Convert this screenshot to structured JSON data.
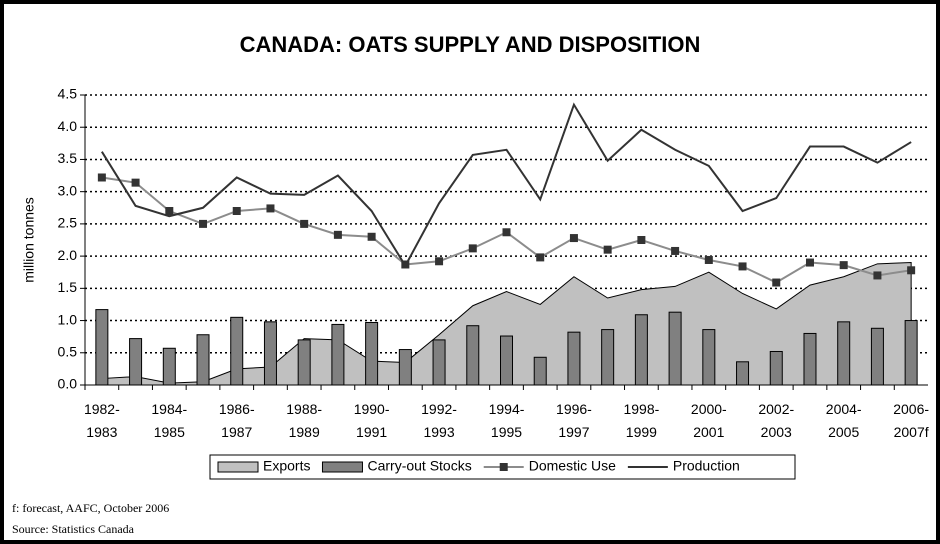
{
  "chart_data": {
    "type": "combo",
    "title": "CANADA: OATS SUPPLY AND DISPOSITION",
    "y_label": "million tonnes",
    "categories": [
      "1982-\n1983",
      null,
      "1984-\n1985",
      null,
      "1986-\n1987",
      null,
      "1988-\n1989",
      null,
      "1990-\n1991",
      null,
      "1992-\n1993",
      null,
      "1994-\n1995",
      null,
      "1996-\n1997",
      null,
      "1998-\n1999",
      null,
      "2000-\n2001",
      null,
      "2002-\n2003",
      null,
      "2004-\n2005",
      null,
      "2006-\n2007f"
    ],
    "series": [
      {
        "name": "Exports",
        "type": "area",
        "color": "#c0c0c0",
        "values": [
          0.1,
          0.13,
          0.03,
          0.05,
          0.25,
          0.28,
          0.72,
          0.7,
          0.37,
          0.35,
          0.78,
          1.23,
          1.45,
          1.25,
          1.68,
          1.35,
          1.48,
          1.53,
          1.75,
          1.42,
          1.18,
          1.55,
          1.68,
          1.88,
          1.9
        ]
      },
      {
        "name": "Carry-out Stocks",
        "type": "bar",
        "color": "#808080",
        "values": [
          1.17,
          0.72,
          0.57,
          0.78,
          1.05,
          0.98,
          0.7,
          0.94,
          0.97,
          0.55,
          0.7,
          0.92,
          0.76,
          0.43,
          0.82,
          0.86,
          1.09,
          1.13,
          0.86,
          0.36,
          0.52,
          0.8,
          0.98,
          0.88,
          1.0
        ]
      },
      {
        "name": "Domestic Use",
        "type": "line",
        "marker": "square",
        "color": "#8c8c8c",
        "values": [
          3.22,
          3.14,
          2.7,
          2.5,
          2.7,
          2.74,
          2.5,
          2.33,
          2.3,
          1.87,
          1.92,
          2.12,
          2.37,
          1.98,
          2.28,
          2.1,
          2.25,
          2.08,
          1.94,
          1.84,
          1.59,
          1.9,
          1.86,
          1.7,
          1.78
        ]
      },
      {
        "name": "Production",
        "type": "line",
        "color": "#333333",
        "values": [
          3.62,
          2.78,
          2.62,
          2.75,
          3.22,
          2.97,
          2.95,
          3.25,
          2.7,
          1.85,
          2.82,
          3.57,
          3.65,
          2.88,
          4.35,
          3.48,
          3.96,
          3.65,
          3.4,
          2.7,
          2.9,
          3.7,
          3.7,
          3.45,
          3.77
        ]
      }
    ],
    "ylim": [
      0,
      4.5
    ],
    "yticks": [
      {
        "value": 0,
        "label": "0.0"
      },
      0.5,
      {
        "value": 1,
        "label": "1.0"
      },
      1.5,
      {
        "value": 2,
        "label": "2.0"
      },
      2.5,
      {
        "value": 3,
        "label": "3.0"
      },
      3.5,
      {
        "value": 4,
        "label": "4.0"
      },
      4.5
    ],
    "grid": true,
    "legend": "bottom",
    "notes": [
      "f: forecast, AAFC, October 2006",
      "Source:  Statistics Canada"
    ]
  }
}
